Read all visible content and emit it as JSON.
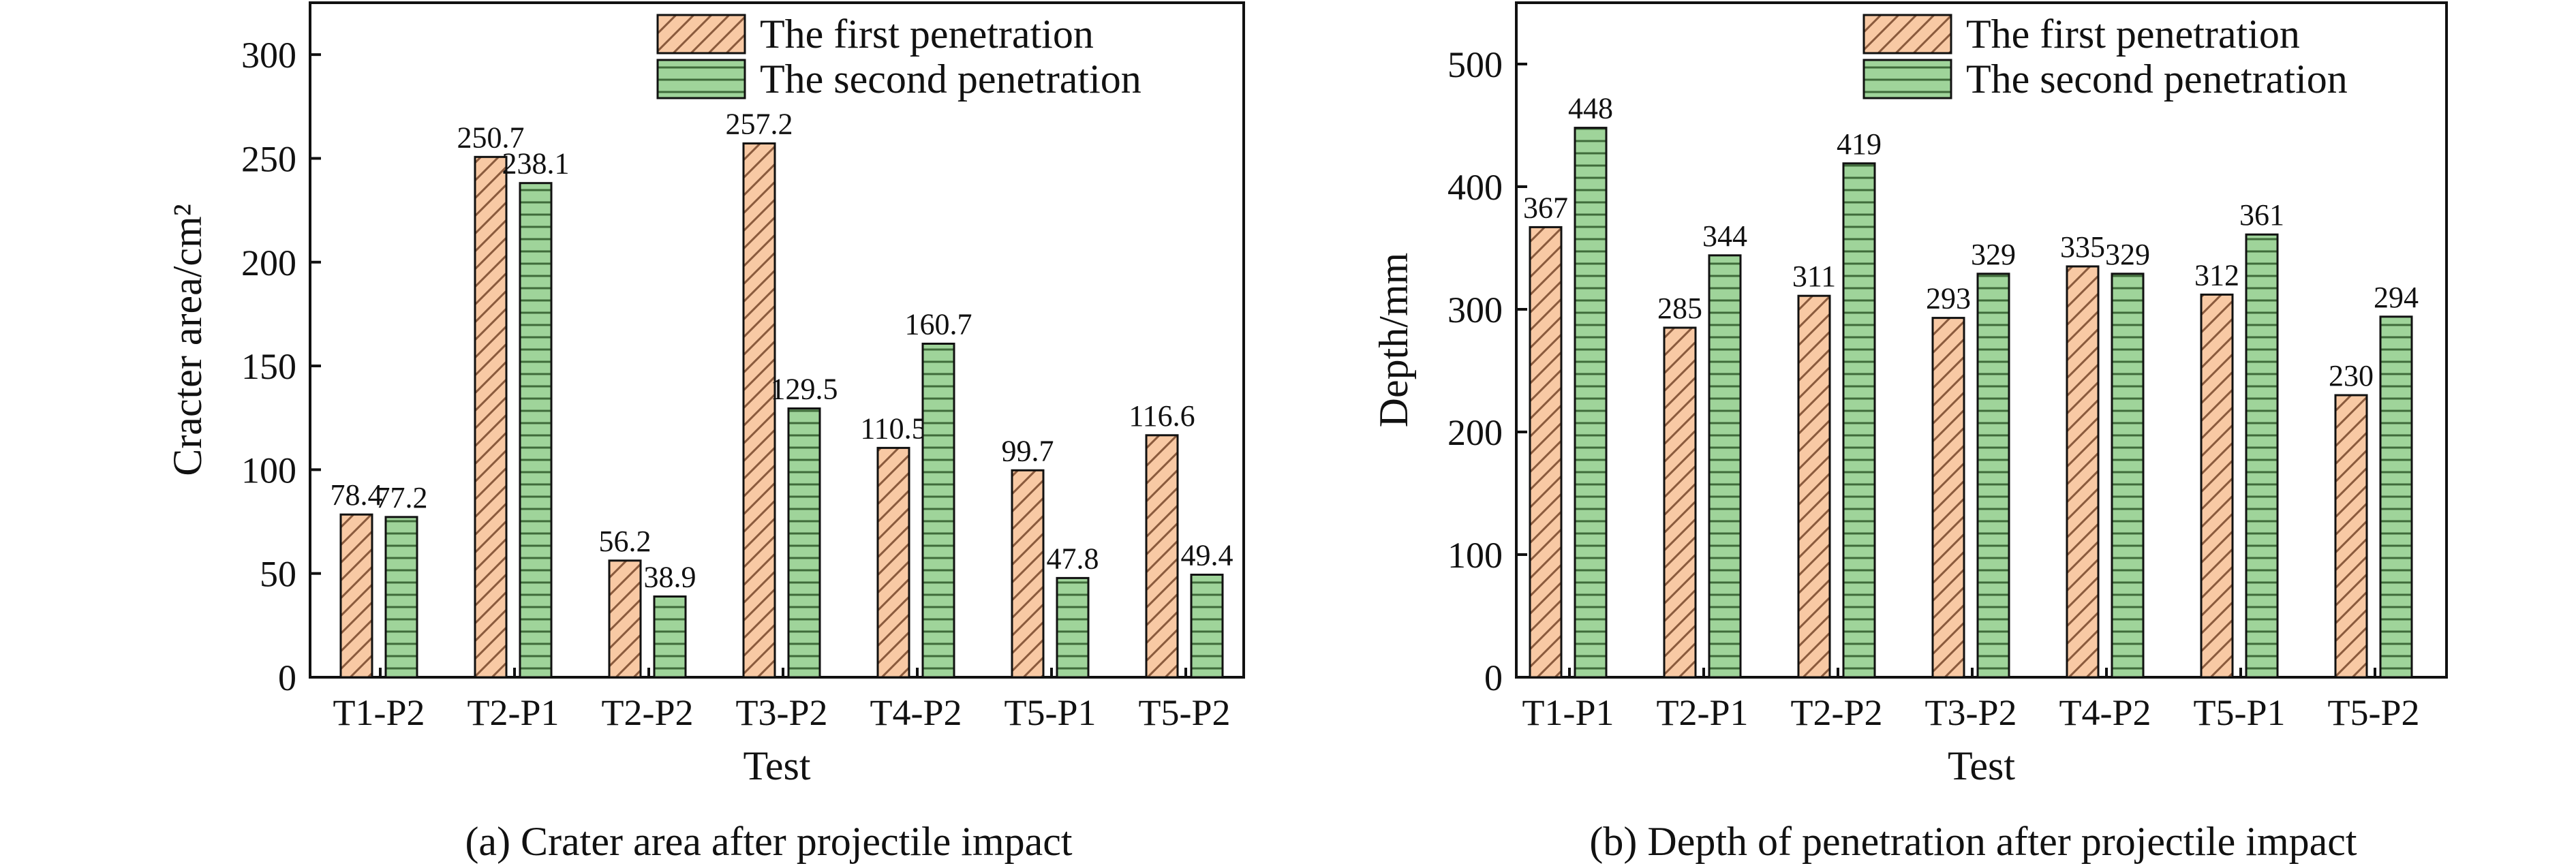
{
  "colors": {
    "first_fill": "#f8c9a4",
    "first_hatch": "#8a5a3c",
    "second_fill": "#9fd49a",
    "second_hatch": "#3f6b3a"
  },
  "chart_data": [
    {
      "type": "bar",
      "caption": "(a) Crater area after projectile impact",
      "xlabel": "Test",
      "ylabel": "Cracter area/cm²",
      "ylim": [
        0,
        325
      ],
      "yticks": [
        0,
        50,
        100,
        150,
        200,
        250,
        300
      ],
      "categories": [
        "T1-P2",
        "T2-P1",
        "T2-P2",
        "T3-P2",
        "T4-P2",
        "T5-P1",
        "T5-P2"
      ],
      "legend_placement": "top-right",
      "series": [
        {
          "name": "The first penetration",
          "values": [
            78.4,
            250.7,
            56.2,
            257.2,
            110.5,
            99.7,
            116.6
          ],
          "labels": [
            "78.4",
            "250.7",
            "56.2",
            "257.2",
            "110.5",
            "99.7",
            "116.6"
          ]
        },
        {
          "name": "The second penetration",
          "values": [
            77.2,
            238.1,
            38.9,
            129.5,
            160.7,
            47.8,
            49.4
          ],
          "labels": [
            "77.2",
            "238.1",
            "38.9",
            "129.5",
            "160.7",
            "47.8",
            "49.4"
          ]
        }
      ]
    },
    {
      "type": "bar",
      "caption": "(b) Depth of penetration after projectile impact",
      "xlabel": "Test",
      "ylabel": "Depth/mm",
      "ylim": [
        0,
        550
      ],
      "yticks": [
        0,
        100,
        200,
        300,
        400,
        500
      ],
      "categories": [
        "T1-P1",
        "T2-P1",
        "T2-P2",
        "T3-P2",
        "T4-P2",
        "T5-P1",
        "T5-P2"
      ],
      "legend_placement": "top-right",
      "series": [
        {
          "name": "The first penetration",
          "values": [
            367,
            285,
            311,
            293,
            335,
            312,
            230
          ],
          "labels": [
            "367",
            "285",
            "311",
            "293",
            "335",
            "312",
            "230"
          ]
        },
        {
          "name": "The second penetration",
          "values": [
            448,
            344,
            419,
            329,
            329,
            361,
            294
          ],
          "labels": [
            "448",
            "344",
            "419",
            "329",
            "329",
            "361",
            "294"
          ]
        }
      ]
    }
  ]
}
